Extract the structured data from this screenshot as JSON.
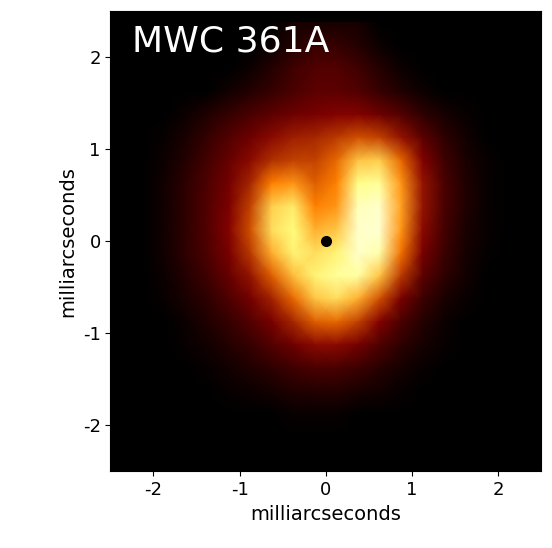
{
  "chart_data": {
    "type": "heatmap",
    "title": "MWC 361A",
    "x_label": "milliarcseconds",
    "y_label": "milliarcseconds",
    "xlim": [
      -2.5,
      2.5
    ],
    "ylim": [
      -2.5,
      2.5
    ],
    "xticks": [
      -2,
      -1,
      0,
      1,
      2
    ],
    "yticks": [
      -2,
      -1,
      0,
      1,
      2
    ],
    "grid": false,
    "x": [
      -2.375,
      -2.125,
      -1.875,
      -1.625,
      -1.375,
      -1.125,
      -0.875,
      -0.625,
      -0.375,
      -0.125,
      0.125,
      0.375,
      0.625,
      0.875,
      1.125,
      1.375,
      1.625,
      1.875,
      2.125,
      2.375
    ],
    "y": [
      2.375,
      2.125,
      1.875,
      1.625,
      1.375,
      1.125,
      0.875,
      0.625,
      0.375,
      0.125,
      -0.125,
      -0.375,
      -0.625,
      -0.875,
      -1.125,
      -1.375,
      -1.625,
      -1.875,
      -2.125,
      -2.375
    ],
    "cells": [
      [
        0,
        0,
        0,
        0,
        0,
        0,
        0,
        0,
        0.05,
        0.05,
        0.05,
        0.05,
        0,
        0,
        0,
        0,
        0,
        0,
        0,
        0
      ],
      [
        0,
        0,
        0,
        0,
        0,
        0,
        0,
        0.03,
        0.08,
        0.12,
        0.12,
        0.08,
        0.03,
        0,
        0,
        0,
        0,
        0,
        0,
        0
      ],
      [
        0,
        0,
        0,
        0,
        0,
        0,
        0.03,
        0.08,
        0.14,
        0.18,
        0.18,
        0.14,
        0.08,
        0.03,
        0,
        0,
        0,
        0,
        0,
        0
      ],
      [
        0,
        0,
        0,
        0,
        0,
        0.04,
        0.08,
        0.12,
        0.16,
        0.2,
        0.2,
        0.18,
        0.12,
        0.07,
        0.03,
        0,
        0,
        0,
        0,
        0
      ],
      [
        0,
        0,
        0,
        0.03,
        0.07,
        0.12,
        0.16,
        0.2,
        0.24,
        0.26,
        0.28,
        0.28,
        0.24,
        0.18,
        0.1,
        0.05,
        0.02,
        0,
        0,
        0
      ],
      [
        0,
        0,
        0.02,
        0.06,
        0.12,
        0.18,
        0.24,
        0.3,
        0.34,
        0.36,
        0.4,
        0.45,
        0.42,
        0.32,
        0.2,
        0.1,
        0.04,
        0,
        0,
        0
      ],
      [
        0,
        0,
        0.03,
        0.08,
        0.15,
        0.22,
        0.3,
        0.38,
        0.42,
        0.42,
        0.5,
        0.7,
        0.72,
        0.5,
        0.28,
        0.14,
        0.06,
        0.02,
        0,
        0
      ],
      [
        0,
        0,
        0.04,
        0.1,
        0.17,
        0.25,
        0.36,
        0.55,
        0.6,
        0.48,
        0.55,
        0.85,
        0.88,
        0.6,
        0.32,
        0.16,
        0.07,
        0.02,
        0,
        0
      ],
      [
        0,
        0,
        0.04,
        0.1,
        0.18,
        0.27,
        0.42,
        0.72,
        0.78,
        0.55,
        0.6,
        0.95,
        0.98,
        0.62,
        0.32,
        0.16,
        0.07,
        0.02,
        0,
        0
      ],
      [
        0,
        0,
        0.04,
        0.1,
        0.18,
        0.28,
        0.45,
        0.75,
        0.82,
        0.65,
        0.7,
        0.98,
        1.0,
        0.6,
        0.3,
        0.15,
        0.06,
        0.02,
        0,
        0
      ],
      [
        0,
        0,
        0.04,
        0.1,
        0.17,
        0.26,
        0.4,
        0.65,
        0.8,
        0.75,
        0.8,
        0.98,
        0.92,
        0.52,
        0.26,
        0.13,
        0.05,
        0.01,
        0,
        0
      ],
      [
        0,
        0,
        0.03,
        0.08,
        0.14,
        0.22,
        0.32,
        0.48,
        0.68,
        0.8,
        0.88,
        0.9,
        0.7,
        0.4,
        0.2,
        0.1,
        0.04,
        0,
        0,
        0
      ],
      [
        0,
        0,
        0.02,
        0.06,
        0.1,
        0.17,
        0.25,
        0.35,
        0.5,
        0.7,
        0.75,
        0.65,
        0.45,
        0.26,
        0.13,
        0.06,
        0.02,
        0,
        0,
        0
      ],
      [
        0,
        0,
        0,
        0.03,
        0.07,
        0.12,
        0.18,
        0.26,
        0.36,
        0.48,
        0.5,
        0.42,
        0.28,
        0.16,
        0.08,
        0.03,
        0,
        0,
        0,
        0
      ],
      [
        0,
        0,
        0,
        0.02,
        0.04,
        0.08,
        0.12,
        0.18,
        0.24,
        0.3,
        0.3,
        0.25,
        0.17,
        0.1,
        0.05,
        0.02,
        0,
        0,
        0,
        0
      ],
      [
        0,
        0,
        0,
        0,
        0.02,
        0.04,
        0.07,
        0.1,
        0.14,
        0.16,
        0.16,
        0.13,
        0.09,
        0.05,
        0.02,
        0,
        0,
        0,
        0,
        0
      ],
      [
        0,
        0,
        0,
        0,
        0,
        0.02,
        0.03,
        0.05,
        0.07,
        0.08,
        0.08,
        0.06,
        0.04,
        0.02,
        0,
        0,
        0,
        0,
        0,
        0
      ],
      [
        0,
        0,
        0,
        0,
        0,
        0,
        0,
        0,
        0.02,
        0.02,
        0.02,
        0,
        0,
        0,
        0,
        0,
        0,
        0,
        0,
        0
      ],
      [
        0,
        0,
        0,
        0,
        0,
        0,
        0,
        0,
        0,
        0,
        0,
        0,
        0,
        0,
        0,
        0,
        0,
        0,
        0,
        0
      ],
      [
        0,
        0,
        0,
        0,
        0,
        0,
        0,
        0,
        0,
        0,
        0,
        0,
        0,
        0,
        0,
        0,
        0,
        0,
        0,
        0
      ]
    ],
    "markers": {
      "x": [
        0
      ],
      "y": [
        0
      ],
      "color": "black"
    }
  }
}
